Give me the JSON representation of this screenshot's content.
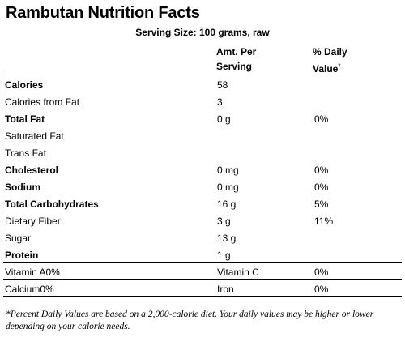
{
  "title": "Rambutan Nutrition Facts",
  "serving_size": "Serving Size: 100 grams, raw",
  "headers": {
    "amount": [
      "Amt. Per",
      "Serving"
    ],
    "daily_value": [
      "% Daily",
      "Value"
    ],
    "daily_value_marker": "*"
  },
  "rows": [
    {
      "label": "Calories",
      "amount": "58",
      "dv": "",
      "bold": true
    },
    {
      "label": "Calories from Fat",
      "amount": "3",
      "dv": "",
      "bold": false
    },
    {
      "label": "Total Fat",
      "amount": "0 g",
      "dv": "0%",
      "bold": true
    },
    {
      "label": "Saturated Fat",
      "amount": "",
      "dv": "",
      "bold": false
    },
    {
      "label": "Trans Fat",
      "amount": "",
      "dv": "",
      "bold": false
    },
    {
      "label": "Cholesterol",
      "amount": "0 mg",
      "dv": "0%",
      "bold": true
    },
    {
      "label": "Sodium",
      "amount": "0 mg",
      "dv": "0%",
      "bold": true
    },
    {
      "label": "Total Carbohydrates",
      "amount": "16 g",
      "dv": "5%",
      "bold": true
    },
    {
      "label": "Dietary Fiber",
      "amount": "3 g",
      "dv": "11%",
      "bold": false
    },
    {
      "label": "Sugar",
      "amount": "13 g",
      "dv": "",
      "bold": false
    },
    {
      "label": "Protein",
      "amount": "1 g",
      "dv": "",
      "bold": true
    },
    {
      "label": "Vitamin A0%",
      "amount": "Vitamin C",
      "dv": "0%",
      "bold": false
    },
    {
      "label": "Calcium0%",
      "amount": "Iron",
      "dv": "0%",
      "bold": false
    }
  ],
  "footnote": "*Percent Daily Values are based on a 2,000-calorie diet. Your daily values may be higher or lower depending on your calorie needs."
}
